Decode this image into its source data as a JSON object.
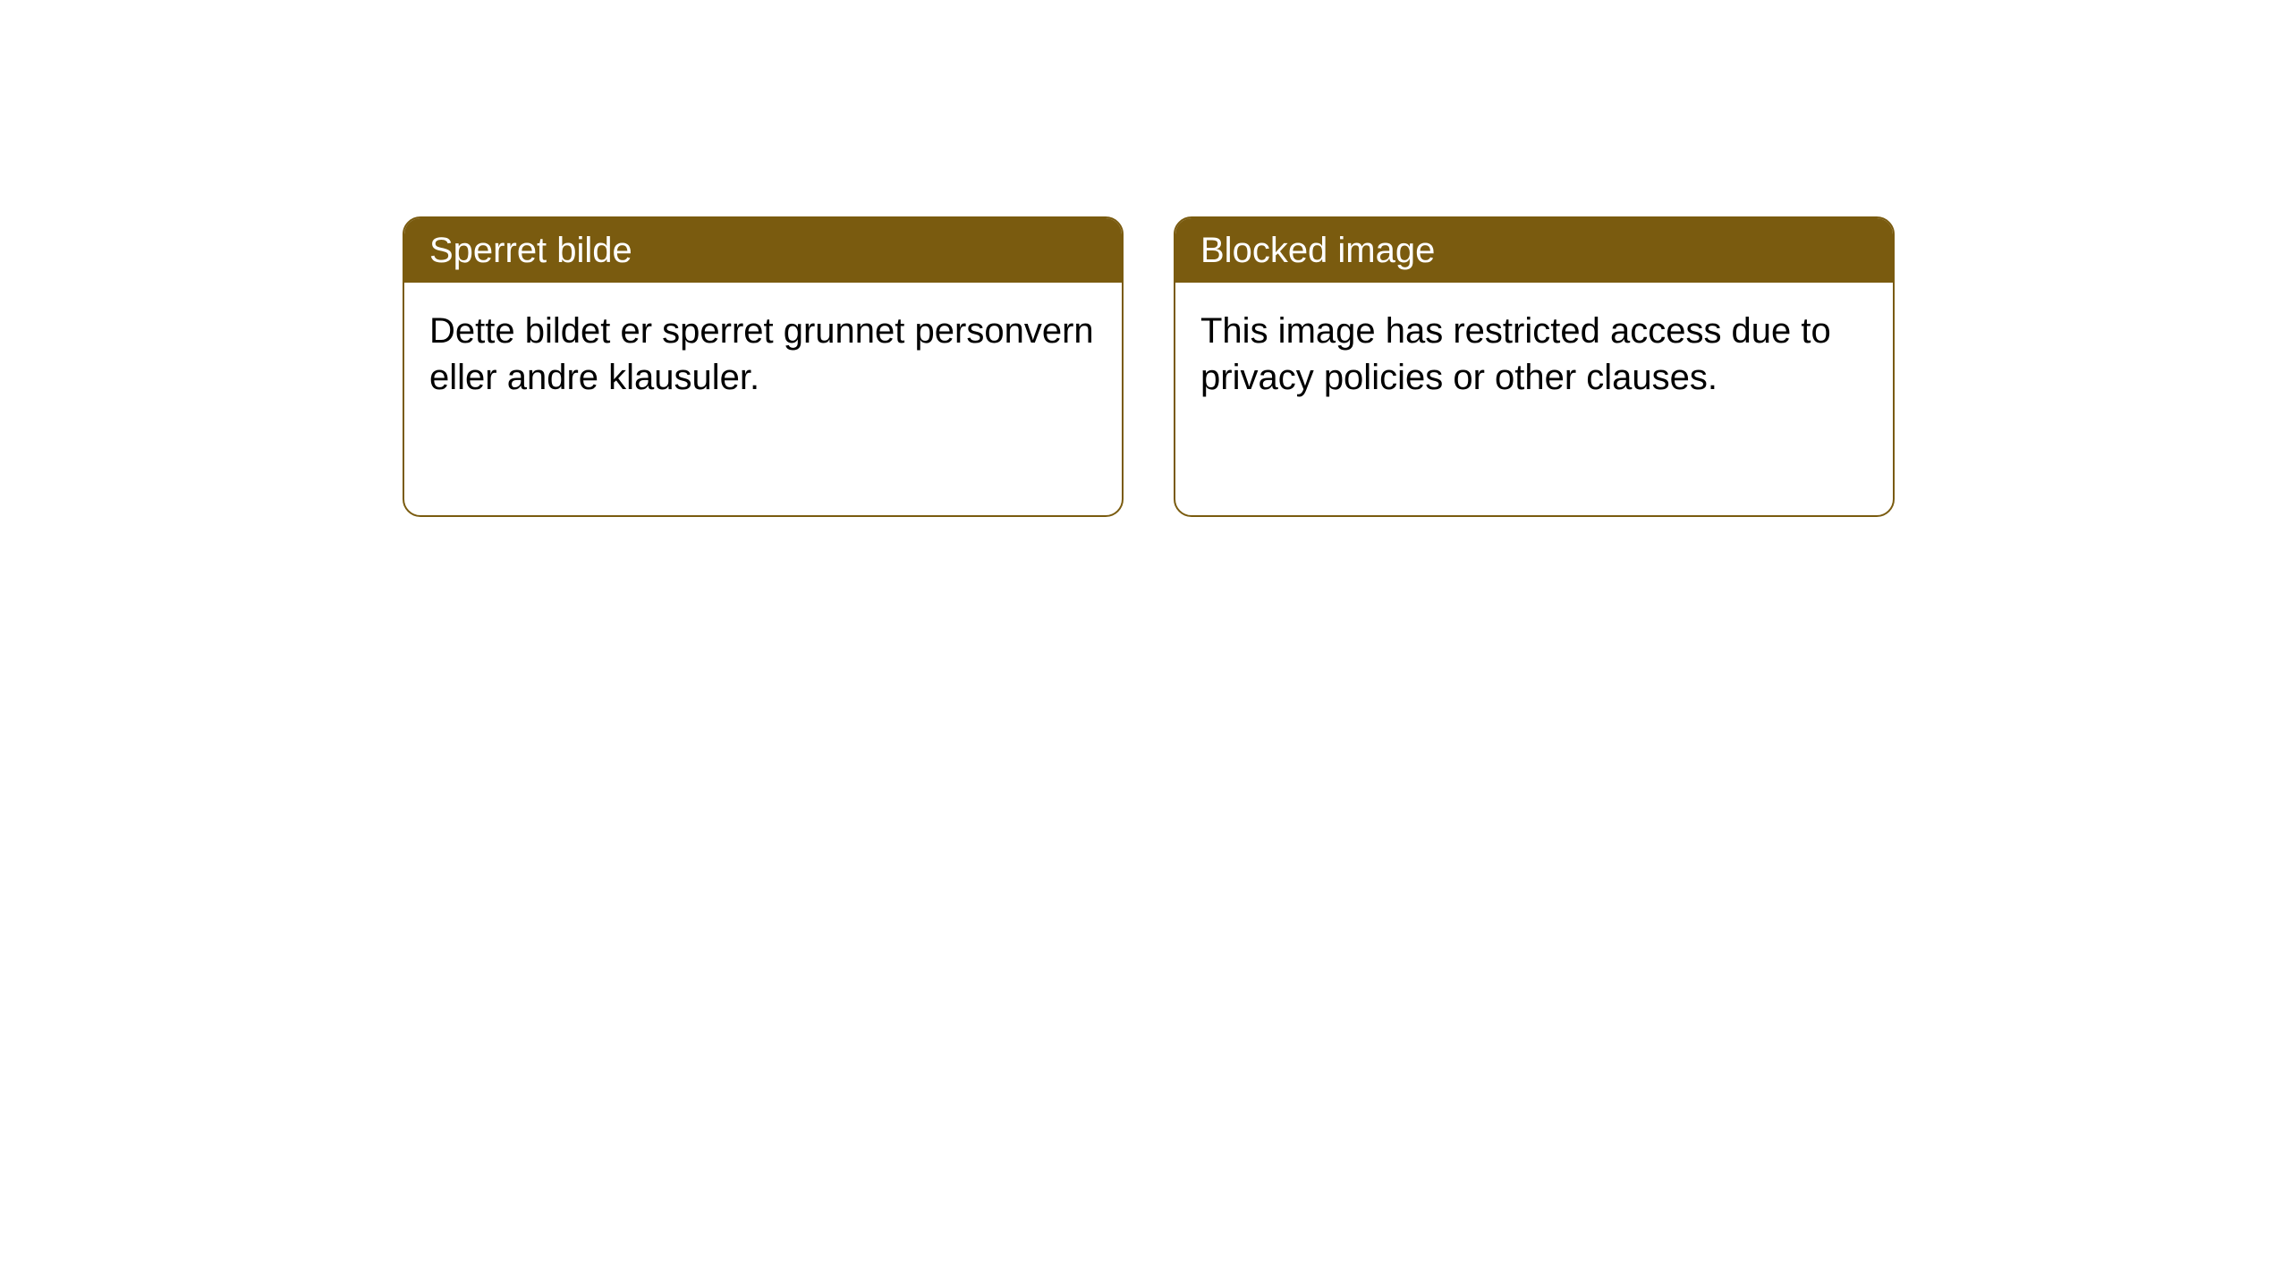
{
  "notices": [
    {
      "title": "Sperret bilde",
      "body": "Dette bildet er sperret grunnet personvern eller andre klausuler."
    },
    {
      "title": "Blocked image",
      "body": "This image has restricted access due to privacy policies or other clauses."
    }
  ],
  "styling": {
    "card_border_color": "#7a5b0f",
    "header_background_color": "#7a5b0f",
    "header_text_color": "#ffffff",
    "body_text_color": "#000000",
    "page_background_color": "#ffffff",
    "card_border_radius": 20,
    "header_fontsize": 40,
    "body_fontsize": 40
  }
}
